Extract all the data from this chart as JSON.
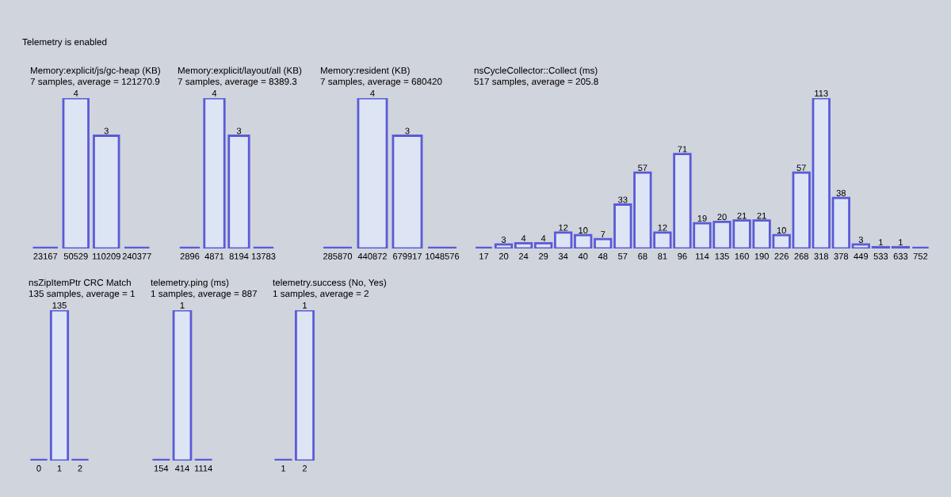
{
  "chart_data": [
    {
      "type": "bar",
      "title": "Memory:explicit/js/gc-heap (KB)",
      "subtitle": "7 samples, average = 121270.9",
      "annotations": [
        "Telemetry is enabled"
      ],
      "categories": [
        "23167",
        "50529",
        "110209",
        "240377"
      ],
      "values": [
        0,
        4,
        3,
        0
      ],
      "value_labels": [
        null,
        "4",
        "3",
        null
      ],
      "colors": [
        "#5a5ad8",
        "#dde5f5",
        "#dde5f5",
        "#5a5ad8"
      ]
    },
    {
      "type": "bar",
      "title": "Memory:explicit/layout/all (KB)",
      "subtitle": "7 samples, average = 8389.3",
      "categories": [
        "2896",
        "4871",
        "8194",
        "13783"
      ],
      "values": [
        0,
        4,
        3,
        0
      ],
      "value_labels": [
        null,
        "4",
        "3",
        null
      ],
      "colors": [
        "#5a5ad8",
        "#dde5f5",
        "#dde5f5",
        "#5a5ad8"
      ]
    },
    {
      "type": "bar",
      "title": "Memory:resident (KB)",
      "subtitle": "7 samples, average = 680420",
      "categories": [
        "285870",
        "440872",
        "679917",
        "1048576"
      ],
      "values": [
        0,
        4,
        3,
        0
      ],
      "value_labels": [
        null,
        "4",
        "3",
        null
      ],
      "colors": [
        "#5a5ad8",
        "#dde5f5",
        "#dde5f5",
        "#5a5ad8"
      ]
    },
    {
      "type": "bar",
      "title": "nsCycleCollector::Collect (ms)",
      "subtitle": "517 samples, average = 205.8",
      "categories": [
        "17",
        "20",
        "24",
        "29",
        "34",
        "40",
        "48",
        "57",
        "68",
        "81",
        "96",
        "114",
        "135",
        "160",
        "190",
        "226",
        "268",
        "318",
        "378",
        "449",
        "533",
        "633",
        "752"
      ],
      "values": [
        0,
        3,
        4,
        4,
        12,
        10,
        7,
        33,
        57,
        12,
        71,
        19,
        20,
        21,
        21,
        10,
        57,
        113,
        38,
        3,
        1,
        1,
        0
      ],
      "value_labels": [
        null,
        "3",
        "4",
        "4",
        "12",
        "10",
        "7",
        "33",
        "57",
        "12",
        "71",
        "19",
        "20",
        "21",
        "21",
        "10",
        "57",
        "113",
        "38",
        "3",
        "1",
        "1",
        null
      ],
      "colors": [
        "#5a5ad8",
        "#dde5f5",
        "#dde5f5",
        "#dde5f5",
        "#dde5f5",
        "#dde5f5",
        "#dde5f5",
        "#dde5f5",
        "#dde5f5",
        "#dde5f5",
        "#dde5f5",
        "#dde5f5",
        "#dde5f5",
        "#dde5f5",
        "#dde5f5",
        "#dde5f5",
        "#dde5f5",
        "#dde5f5",
        "#dde5f5",
        "#dde5f5",
        "#dde5f5",
        "#dde5f5",
        "#5a5ad8"
      ]
    },
    {
      "type": "bar",
      "title": "nsZipItemPtr CRC Match",
      "subtitle": "135 samples, average = 1",
      "categories": [
        "0",
        "1",
        "2"
      ],
      "values": [
        0,
        135,
        0
      ],
      "value_labels": [
        null,
        "135",
        null
      ],
      "colors": [
        "#5a5ad8",
        "#dde5f5",
        "#5a5ad8"
      ]
    },
    {
      "type": "bar",
      "title": "telemetry.ping (ms)",
      "subtitle": "1 samples, average = 887",
      "categories": [
        "154",
        "414",
        "1114"
      ],
      "values": [
        0,
        1,
        0
      ],
      "value_labels": [
        null,
        "1",
        null
      ],
      "colors": [
        "#5a5ad8",
        "#dde5f5",
        "#5a5ad8"
      ]
    },
    {
      "type": "bar",
      "title": "telemetry.success (No, Yes)",
      "subtitle": "1 samples, average = 2",
      "categories": [
        "1",
        "2"
      ],
      "values": [
        0,
        1
      ],
      "value_labels": [
        null,
        "1"
      ],
      "colors": [
        "#5a5ad8",
        "#dde5f5"
      ]
    }
  ]
}
